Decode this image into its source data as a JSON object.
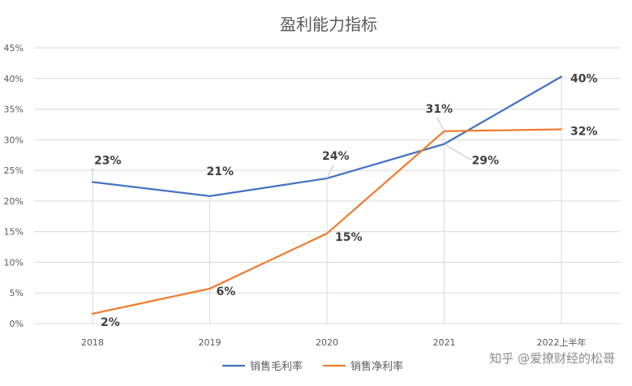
{
  "watermark": "知乎 @爱撩财经的松哥",
  "colors": {
    "series1": "#4472c4",
    "series2": "#ed7d31",
    "grid": "#d9d9d9",
    "leader": "#bfbfbf"
  },
  "chart_data": {
    "type": "line",
    "title": "盈利能力指标",
    "categories": [
      "2018",
      "2019",
      "2020",
      "2021",
      "2022上半年"
    ],
    "ylim": [
      0,
      45
    ],
    "yticks": [
      0,
      5,
      10,
      15,
      20,
      25,
      30,
      35,
      40,
      45
    ],
    "ytick_labels": [
      "0%",
      "5%",
      "10%",
      "15%",
      "20%",
      "25%",
      "30%",
      "35%",
      "40%",
      "45%"
    ],
    "grid": true,
    "legend_position": "bottom",
    "series": [
      {
        "name": "销售毛利率",
        "values": [
          23.1,
          20.8,
          23.7,
          29.3,
          40.3
        ],
        "labels": [
          "23%",
          "21%",
          "24%",
          "29%",
          "40%"
        ]
      },
      {
        "name": "销售净利率",
        "values": [
          1.6,
          5.7,
          14.7,
          31.4,
          31.7
        ],
        "labels": [
          "2%",
          "6%",
          "15%",
          "31%",
          "32%"
        ]
      }
    ]
  }
}
